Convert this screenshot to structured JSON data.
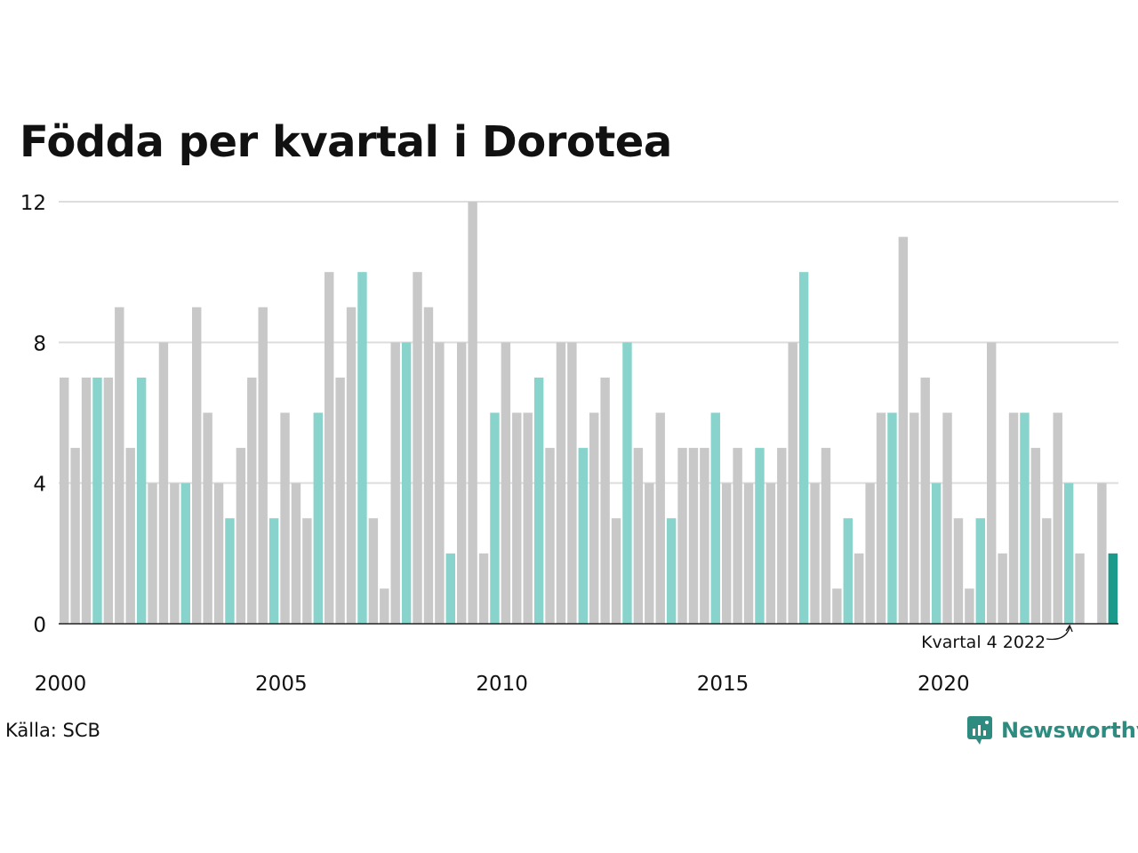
{
  "title": "Födda per kvartal i Dorotea",
  "source": "Källa: SCB",
  "brand": "Newsworthy",
  "colors": {
    "bar": "#c8c8c8",
    "highlight": "#88d4cc",
    "latest": "#1a9a8a",
    "grid": "#dddddd",
    "axis": "#222222",
    "brand": "#2e8b7f"
  },
  "chart_data": {
    "type": "bar",
    "title": "Födda per kvartal i Dorotea",
    "xlabel": "",
    "ylabel": "",
    "ylim": [
      0,
      12
    ],
    "yticks": [
      "0",
      "4",
      "8",
      "12"
    ],
    "xticks": [
      {
        "label": "2000",
        "year": 2000
      },
      {
        "label": "2005",
        "year": 2005
      },
      {
        "label": "2010",
        "year": 2010
      },
      {
        "label": "2015",
        "year": 2015
      },
      {
        "label": "2020",
        "year": 2020
      }
    ],
    "grid": true,
    "highlight_quarter": "Q4",
    "annotation": {
      "text": "Kvartal 4 2022",
      "index": 91
    },
    "latest_index": 95,
    "series": [
      {
        "values": [
          7,
          5,
          7,
          7,
          7,
          9,
          5,
          7,
          4,
          8,
          4,
          4,
          9,
          6,
          4,
          3,
          5,
          7,
          9,
          3,
          6,
          4,
          3,
          6,
          10,
          7,
          9,
          10,
          3,
          1,
          8,
          8,
          10,
          9,
          8,
          2,
          8,
          12,
          2,
          6,
          8,
          6,
          6,
          7,
          5,
          8,
          8,
          5,
          6,
          7,
          3,
          8,
          5,
          4,
          6,
          3,
          5,
          5,
          5,
          6,
          4,
          5,
          4,
          5,
          4,
          5,
          8,
          10,
          4,
          5,
          1,
          3,
          2,
          4,
          6,
          6,
          11,
          6,
          7,
          4,
          6,
          3,
          1,
          3,
          8,
          2,
          6,
          6,
          5,
          3,
          6,
          4,
          2,
          0,
          4,
          2
        ]
      }
    ]
  }
}
